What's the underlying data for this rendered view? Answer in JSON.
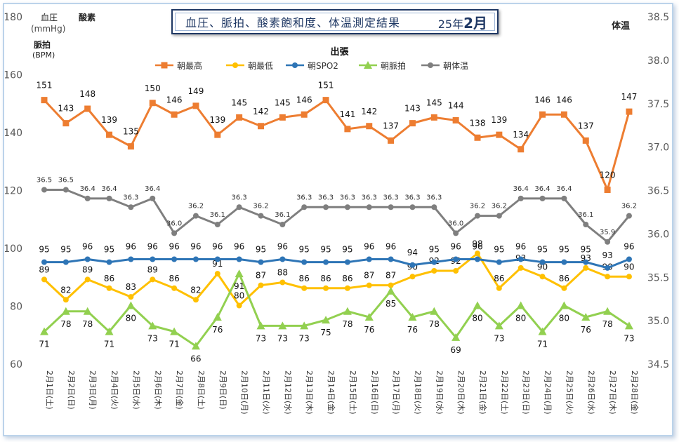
{
  "title": {
    "text": "血圧、脈拍、酸素飽和度、体温測定結果",
    "year_prefix": "25年",
    "month": "2月"
  },
  "labels": {
    "bp": "血圧",
    "bp_unit": "(mmHg)",
    "oxygen": "酸素",
    "pulse": "脈拍",
    "pulse_unit": "(BPM)",
    "temp": "体温"
  },
  "colors": {
    "high": "#ED7D31",
    "low": "#FFC000",
    "spo2": "#2E75B6",
    "pulse": "#92D050",
    "temp": "#7F7F7F"
  },
  "chart_data": {
    "type": "line",
    "title": "血圧、脈拍、酸素飽和度、体温測定結果 25年2月",
    "subtitle": "出張",
    "ylim_left": [
      60,
      180
    ],
    "yticks_left": [
      60,
      80,
      100,
      120,
      140,
      160,
      180
    ],
    "ylim_right": [
      34.5,
      38.5
    ],
    "yticks_right": [
      "34.5",
      "35.0",
      "35.5",
      "36.0",
      "36.5",
      "37.0",
      "37.5",
      "38.0",
      "38.5"
    ],
    "legend_position": "top",
    "grid": false,
    "categories": [
      "2月1日(土)",
      "2月2日(日)",
      "2月3日(月)",
      "2月4日(火)",
      "2月5日(水)",
      "2月6日(木)",
      "2月7日(金)",
      "2月8日(土)",
      "2月9日(日)",
      "2月10日(月)",
      "2月11日(火)",
      "2月12日(水)",
      "2月13日(木)",
      "2月14日(金)",
      "2月15日(土)",
      "2月16日(日)",
      "2月17日(月)",
      "2月18日(火)",
      "2月19日(水)",
      "2月20日(木)",
      "2月21日(金)",
      "2月22日(土)",
      "2月23日(日)",
      "2月24日(月)",
      "2月25日(火)",
      "2月26日(水)",
      "2月27日(木)",
      "2月28日(金)"
    ],
    "series": [
      {
        "name": "朝最高",
        "axis": "left",
        "marker": "square",
        "values": [
          151,
          143,
          148,
          139,
          135,
          150,
          146,
          149,
          139,
          145,
          142,
          145,
          146,
          151,
          141,
          142,
          137,
          143,
          145,
          144,
          138,
          139,
          134,
          146,
          146,
          137,
          120,
          147
        ]
      },
      {
        "name": "朝最低",
        "axis": "left",
        "marker": "circle",
        "values": [
          89,
          82,
          89,
          86,
          83,
          89,
          86,
          82,
          91,
          80,
          87,
          88,
          86,
          86,
          86,
          87,
          87,
          90,
          92,
          92,
          98,
          86,
          93,
          90,
          86,
          93,
          90,
          90
        ]
      },
      {
        "name": "朝SPO2",
        "axis": "left",
        "marker": "circle",
        "values": [
          95,
          95,
          96,
          95,
          96,
          96,
          96,
          96,
          96,
          96,
          95,
          96,
          95,
          95,
          95,
          96,
          96,
          94,
          95,
          96,
          96,
          95,
          96,
          95,
          95,
          95,
          93,
          96
        ]
      },
      {
        "name": "朝脈拍",
        "axis": "left",
        "marker": "triangle",
        "values": [
          71,
          78,
          78,
          71,
          80,
          73,
          71,
          66,
          76,
          91,
          73,
          73,
          73,
          75,
          78,
          76,
          85,
          76,
          78,
          69,
          80,
          73,
          80,
          71,
          80,
          76,
          78,
          73
        ]
      },
      {
        "name": "朝体温",
        "axis": "right",
        "marker": "circle",
        "values": [
          "36.5",
          "36.5",
          "36.4",
          "36.4",
          "36.3",
          "36.4",
          "36.0",
          "36.2",
          "36.1",
          "36.3",
          "36.2",
          "36.1",
          "36.3",
          "36.3",
          "36.3",
          "36.3",
          "36.3",
          "36.3",
          "36.3",
          "36.0",
          "36.2",
          "36.2",
          "36.4",
          "36.4",
          "36.4",
          "36.1",
          "35.9",
          "36.2"
        ]
      }
    ]
  }
}
